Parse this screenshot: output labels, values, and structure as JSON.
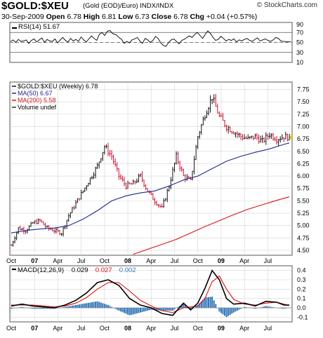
{
  "header": {
    "symbol": "$GOLD:$XEU",
    "subtitle": "(Gold (EOD)/Euro) INDX/INDX",
    "credit": "© StockCharts.com",
    "date": "30-Sep-2009",
    "open_label": "Open",
    "open": "6.78",
    "high_label": "High",
    "high": "6.81",
    "low_label": "Low",
    "low": "6.73",
    "close_label": "Close",
    "close": "6.78",
    "chg_label": "Chg",
    "chg": "+0.04 (+0.57%)"
  },
  "colors": {
    "price_up": "#111111",
    "price_down": "#cc1133",
    "ma50": "#1c2a8c",
    "ma200": "#dd1111",
    "macd_line": "#000000",
    "signal_line": "#dd1111",
    "histogram": "#3377bb",
    "grid": "#d4d4d4",
    "frame": "#555555"
  },
  "chart_data": [
    {
      "type": "line",
      "name": "rsi_panel",
      "legend": "RSI(14) 51.67",
      "ylim": [
        10,
        90
      ],
      "y_ticks": [
        "90",
        "70",
        "50",
        "30",
        "10"
      ],
      "levels": [
        70,
        50,
        30
      ],
      "series": [
        {
          "name": "RSI(14)",
          "x": [
            0,
            4,
            8,
            12,
            16,
            20,
            24,
            28,
            32,
            36,
            40,
            44,
            48,
            52,
            56,
            60,
            64,
            68,
            72,
            76,
            80,
            84,
            88,
            92,
            96,
            100,
            104,
            108,
            112,
            116,
            120,
            124,
            128,
            132,
            136,
            140,
            144,
            148,
            152,
            156,
            160,
            162,
            166,
            170,
            174,
            178,
            182,
            186,
            190,
            194,
            198,
            202,
            206,
            210,
            214,
            218,
            222,
            226,
            230,
            234,
            238,
            242,
            246,
            250,
            254,
            258,
            262,
            266,
            270,
            274,
            278,
            282,
            286,
            290,
            294,
            298,
            302,
            306,
            310,
            314,
            318,
            322,
            326,
            330,
            334,
            338,
            342,
            346,
            350,
            354,
            358,
            362,
            366,
            370,
            374,
            378,
            382,
            386,
            390,
            394,
            398,
            402,
            406,
            410,
            414,
            418,
            422,
            426,
            429
          ],
          "values": [
            52,
            55,
            50,
            56,
            52,
            53,
            55,
            48,
            54,
            57,
            51,
            55,
            59,
            50,
            56,
            53,
            52,
            57,
            49,
            55,
            60,
            54,
            51,
            58,
            53,
            56,
            52,
            61,
            55,
            51,
            57,
            63,
            58,
            54,
            66,
            70,
            64,
            72,
            74,
            68,
            66,
            65,
            60,
            56,
            48,
            52,
            49,
            55,
            57,
            60,
            53,
            48,
            58,
            55,
            50,
            54,
            62,
            58,
            49,
            44,
            42,
            50,
            55,
            57,
            52,
            47,
            54,
            56,
            60,
            63,
            60,
            66,
            70,
            64,
            58,
            66,
            73,
            68,
            60,
            54,
            56,
            62,
            58,
            53,
            56,
            54,
            57,
            51,
            55,
            53,
            56,
            58,
            54,
            52,
            56,
            59,
            53,
            55,
            57,
            54,
            52,
            55,
            60,
            58,
            53,
            52,
            51.67,
            51.67,
            51.67
          ]
        }
      ]
    },
    {
      "type": "line",
      "name": "price_panel",
      "legend": [
        "$GOLD:$XEU (Weekly) 6.78",
        "MA(50) 6.67",
        "MA(200) 5.58",
        "Volume undef"
      ],
      "ylim": [
        4.4,
        7.9
      ],
      "y_ticks": [
        "7.75",
        "7.50",
        "7.25",
        "7.00",
        "6.75",
        "6.50",
        "6.25",
        "6.00",
        "5.75",
        "5.50",
        "5.25",
        "5.00",
        "4.75",
        "4.50"
      ],
      "x_ticks": [
        "Oct",
        "07",
        "Apr",
        "Jul",
        "Oct",
        "08",
        "Apr",
        "Jul",
        "Oct",
        "09",
        "Apr",
        "Jul"
      ],
      "x_tick_weeks": [
        0,
        13,
        26,
        39,
        52,
        65,
        78,
        91,
        104,
        117,
        130,
        143
      ],
      "x_tick_bold": [
        "07",
        "08",
        "09"
      ],
      "weeks": 156,
      "price_anchors": {
        "week": [
          0,
          4,
          8,
          12,
          16,
          20,
          24,
          28,
          32,
          36,
          40,
          44,
          48,
          52,
          56,
          60,
          64,
          68,
          72,
          76,
          80,
          84,
          88,
          92,
          96,
          100,
          104,
          108,
          112,
          116,
          120,
          124,
          128,
          132,
          136,
          140,
          144,
          148,
          152,
          155
        ],
        "close": [
          4.6,
          4.95,
          4.9,
          5.05,
          5.1,
          4.95,
          4.9,
          4.85,
          5.2,
          5.45,
          5.7,
          5.95,
          6.2,
          6.6,
          6.4,
          6.0,
          5.8,
          5.85,
          6.0,
          5.7,
          5.5,
          5.35,
          5.8,
          6.4,
          6.0,
          5.9,
          6.8,
          7.25,
          7.6,
          7.2,
          7.0,
          6.9,
          6.8,
          6.75,
          6.8,
          6.7,
          6.85,
          6.75,
          6.8,
          6.78
        ]
      },
      "series": [
        {
          "name": "MA(50)",
          "week": [
            0,
            8,
            16,
            24,
            32,
            40,
            48,
            56,
            64,
            72,
            80,
            88,
            96,
            104,
            112,
            120,
            128,
            136,
            144,
            152,
            155
          ],
          "values": [
            4.85,
            4.9,
            4.93,
            4.95,
            5.0,
            5.13,
            5.3,
            5.5,
            5.6,
            5.66,
            5.7,
            5.8,
            5.92,
            6.0,
            6.15,
            6.3,
            6.4,
            6.48,
            6.55,
            6.64,
            6.67
          ]
        },
        {
          "name": "MA(200)",
          "week": [
            68,
            76,
            84,
            92,
            100,
            108,
            116,
            124,
            132,
            140,
            148,
            152,
            155
          ],
          "values": [
            4.42,
            4.52,
            4.62,
            4.72,
            4.85,
            4.98,
            5.1,
            5.22,
            5.33,
            5.42,
            5.51,
            5.55,
            5.58
          ]
        }
      ]
    },
    {
      "type": "line",
      "name": "macd_panel",
      "legend": [
        "MACD(12,26,9)",
        "0.029",
        "0.027",
        "0.002"
      ],
      "ylim": [
        -0.15,
        0.45
      ],
      "y_ticks": [
        "0.4",
        "0.3",
        "0.2",
        "0.1",
        "0.0",
        "-0.1"
      ],
      "x_ticks": [
        "Oct",
        "07",
        "Apr",
        "Jul",
        "Oct",
        "08",
        "Apr",
        "Jul",
        "Oct",
        "09",
        "Apr",
        "Jul"
      ],
      "series": [
        {
          "name": "MACD",
          "week": [
            0,
            6,
            12,
            18,
            24,
            30,
            36,
            42,
            48,
            54,
            60,
            66,
            72,
            78,
            84,
            90,
            96,
            100,
            104,
            108,
            112,
            116,
            120,
            124,
            130,
            136,
            142,
            148,
            152,
            155
          ],
          "values": [
            0.02,
            0.04,
            0.02,
            0.01,
            0.0,
            0.03,
            0.08,
            0.16,
            0.27,
            0.3,
            0.24,
            0.1,
            0.03,
            0.0,
            -0.06,
            -0.08,
            0.05,
            -0.02,
            0.05,
            0.21,
            0.4,
            0.3,
            0.1,
            0.04,
            0.05,
            0.02,
            0.07,
            0.06,
            0.03,
            0.029
          ]
        },
        {
          "name": "Signal",
          "week": [
            0,
            6,
            12,
            18,
            24,
            30,
            36,
            42,
            48,
            54,
            60,
            66,
            72,
            78,
            84,
            90,
            96,
            100,
            104,
            108,
            112,
            116,
            120,
            124,
            130,
            136,
            142,
            148,
            152,
            155
          ],
          "values": [
            0.03,
            0.03,
            0.03,
            0.02,
            0.01,
            0.02,
            0.05,
            0.11,
            0.2,
            0.27,
            0.27,
            0.18,
            0.08,
            0.02,
            -0.03,
            -0.05,
            0.0,
            0.01,
            0.02,
            0.1,
            0.28,
            0.34,
            0.2,
            0.09,
            0.04,
            0.03,
            0.05,
            0.06,
            0.04,
            0.027
          ]
        }
      ]
    }
  ]
}
